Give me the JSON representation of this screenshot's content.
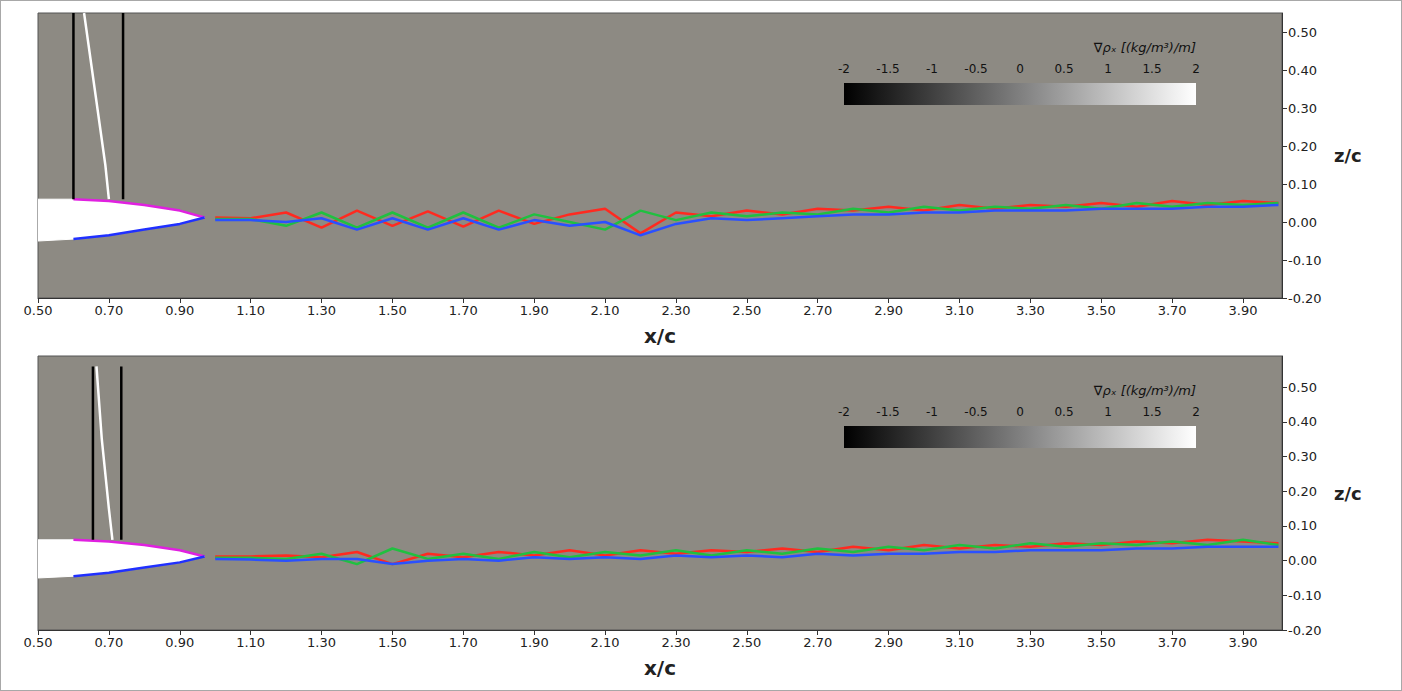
{
  "chart_data": [
    {
      "type": "line",
      "xlabel": "x/c",
      "ylabel": "z/c",
      "xlim": [
        0.5,
        4.01
      ],
      "ylim": [
        -0.2,
        0.55
      ],
      "xticks": [
        {
          "value": 0.5,
          "label": "0.50"
        },
        {
          "value": 0.7,
          "label": "0.70"
        },
        {
          "value": 0.9,
          "label": "0.90"
        },
        {
          "value": 1.1,
          "label": "1.10"
        },
        {
          "value": 1.3,
          "label": "1.30"
        },
        {
          "value": 1.5,
          "label": "1.50"
        },
        {
          "value": 1.7,
          "label": "1.70"
        },
        {
          "value": 1.9,
          "label": "1.90"
        },
        {
          "value": 2.1,
          "label": "2.10"
        },
        {
          "value": 2.3,
          "label": "2.30"
        },
        {
          "value": 2.5,
          "label": "2.50"
        },
        {
          "value": 2.7,
          "label": "2.70"
        },
        {
          "value": 2.9,
          "label": "2.90"
        },
        {
          "value": 3.1,
          "label": "3.10"
        },
        {
          "value": 3.3,
          "label": "3.30"
        },
        {
          "value": 3.5,
          "label": "3.50"
        },
        {
          "value": 3.7,
          "label": "3.70"
        },
        {
          "value": 3.9,
          "label": "3.90"
        }
      ],
      "yticks": [
        {
          "value": -0.2,
          "label": "-0.20"
        },
        {
          "value": -0.1,
          "label": "-0.10"
        },
        {
          "value": 0,
          "label": "0.00"
        },
        {
          "value": 0.1,
          "label": "0.10"
        },
        {
          "value": 0.2,
          "label": "0.20"
        },
        {
          "value": 0.3,
          "label": "0.30"
        },
        {
          "value": 0.4,
          "label": "0.40"
        },
        {
          "value": 0.5,
          "label": "0.50"
        }
      ],
      "grid": false,
      "colorbar": {
        "label": "∇ρₓ [(kg/m³)/m]",
        "range": [
          -2,
          2
        ],
        "ticks": [
          -2,
          -1.5,
          -1,
          -0.5,
          0,
          0.5,
          1,
          1.5,
          2
        ]
      },
      "series": [
        {
          "type": "polygon",
          "color": "#ffffff",
          "x": [
            0.5,
            0.6,
            0.7,
            0.8,
            0.9,
            0.97,
            0.9,
            0.8,
            0.7,
            0.6,
            0.5
          ],
          "values": [
            0.06,
            0.06,
            0.055,
            0.045,
            0.03,
            0.012,
            -0.005,
            -0.02,
            -0.035,
            -0.045,
            -0.05
          ]
        },
        {
          "type": "line",
          "color": "#e020e0",
          "x": [
            0.6,
            0.7,
            0.8,
            0.9,
            0.97
          ],
          "values": [
            0.06,
            0.055,
            0.045,
            0.03,
            0.012
          ]
        },
        {
          "type": "line",
          "color": "#2030ff",
          "x": [
            0.6,
            0.7,
            0.8,
            0.9,
            0.97
          ],
          "values": [
            -0.045,
            -0.035,
            -0.02,
            -0.005,
            0.012
          ]
        },
        {
          "type": "line",
          "color": "#000000",
          "x": [
            0.6,
            0.6
          ],
          "values": [
            0.06,
            0.55
          ]
        },
        {
          "type": "line",
          "color": "#000000",
          "x": [
            0.74,
            0.74
          ],
          "values": [
            0.06,
            0.55
          ]
        },
        {
          "type": "line",
          "color": "#ffffff",
          "x": [
            0.63,
            0.66,
            0.69,
            0.7
          ],
          "values": [
            0.55,
            0.35,
            0.15,
            0.06
          ]
        },
        {
          "type": "line",
          "color": "#ff2a20",
          "x": [
            1.0,
            1.1,
            1.2,
            1.3,
            1.4,
            1.5,
            1.6,
            1.7,
            1.8,
            1.9,
            2.0,
            2.1,
            2.2,
            2.3,
            2.4,
            2.5,
            2.6,
            2.7,
            2.8,
            2.9,
            3.0,
            3.1,
            3.2,
            3.3,
            3.4,
            3.5,
            3.6,
            3.7,
            3.8,
            3.9,
            4.0
          ],
          "values": [
            0.012,
            0.01,
            0.025,
            -0.015,
            0.03,
            -0.01,
            0.028,
            -0.012,
            0.03,
            -0.005,
            0.02,
            0.035,
            -0.03,
            0.025,
            0.015,
            0.03,
            0.02,
            0.035,
            0.03,
            0.04,
            0.03,
            0.045,
            0.035,
            0.045,
            0.04,
            0.05,
            0.04,
            0.055,
            0.045,
            0.055,
            0.05
          ]
        },
        {
          "type": "line",
          "color": "#20c040",
          "x": [
            1.0,
            1.1,
            1.2,
            1.3,
            1.4,
            1.5,
            1.6,
            1.7,
            1.8,
            1.9,
            2.0,
            2.1,
            2.2,
            2.3,
            2.4,
            2.5,
            2.6,
            2.7,
            2.8,
            2.9,
            3.0,
            3.1,
            3.2,
            3.3,
            3.4,
            3.5,
            3.6,
            3.7,
            3.8,
            3.9,
            4.0
          ],
          "values": [
            0.008,
            0.008,
            -0.01,
            0.025,
            -0.015,
            0.025,
            -0.015,
            0.025,
            -0.015,
            0.02,
            0.0,
            -0.02,
            0.03,
            0.005,
            0.025,
            0.015,
            0.025,
            0.02,
            0.035,
            0.025,
            0.04,
            0.03,
            0.04,
            0.035,
            0.045,
            0.035,
            0.05,
            0.04,
            0.05,
            0.045,
            0.05
          ]
        },
        {
          "type": "line",
          "color": "#2a50ff",
          "x": [
            1.0,
            1.1,
            1.2,
            1.3,
            1.4,
            1.5,
            1.6,
            1.7,
            1.8,
            1.9,
            2.0,
            2.1,
            2.2,
            2.3,
            2.4,
            2.5,
            2.6,
            2.7,
            2.8,
            2.9,
            3.0,
            3.1,
            3.2,
            3.3,
            3.4,
            3.5,
            3.6,
            3.7,
            3.8,
            3.9,
            4.0
          ],
          "values": [
            0.005,
            0.005,
            0.0,
            0.01,
            -0.02,
            0.01,
            -0.02,
            0.01,
            -0.02,
            0.005,
            -0.01,
            0.0,
            -0.035,
            -0.005,
            0.01,
            0.005,
            0.01,
            0.015,
            0.02,
            0.02,
            0.025,
            0.025,
            0.03,
            0.03,
            0.03,
            0.035,
            0.035,
            0.035,
            0.04,
            0.04,
            0.045
          ]
        }
      ]
    },
    {
      "type": "line",
      "xlabel": "x/c",
      "ylabel": "z/c",
      "xlim": [
        0.5,
        4.01
      ],
      "ylim": [
        -0.2,
        0.59
      ],
      "xticks": [
        {
          "value": 0.5,
          "label": "0.50"
        },
        {
          "value": 0.7,
          "label": "0.70"
        },
        {
          "value": 0.9,
          "label": "0.90"
        },
        {
          "value": 1.1,
          "label": "1.10"
        },
        {
          "value": 1.3,
          "label": "1.30"
        },
        {
          "value": 1.5,
          "label": "1.50"
        },
        {
          "value": 1.7,
          "label": "1.70"
        },
        {
          "value": 1.9,
          "label": "1.90"
        },
        {
          "value": 2.1,
          "label": "2.10"
        },
        {
          "value": 2.3,
          "label": "2.30"
        },
        {
          "value": 2.5,
          "label": "2.50"
        },
        {
          "value": 2.7,
          "label": "2.70"
        },
        {
          "value": 2.9,
          "label": "2.90"
        },
        {
          "value": 3.1,
          "label": "3.10"
        },
        {
          "value": 3.3,
          "label": "3.30"
        },
        {
          "value": 3.5,
          "label": "3.50"
        },
        {
          "value": 3.7,
          "label": "3.70"
        },
        {
          "value": 3.9,
          "label": "3.90"
        }
      ],
      "yticks": [
        {
          "value": -0.2,
          "label": "-0.20"
        },
        {
          "value": -0.1,
          "label": "-0.10"
        },
        {
          "value": 0,
          "label": "0.00"
        },
        {
          "value": 0.1,
          "label": "0.10"
        },
        {
          "value": 0.2,
          "label": "0.20"
        },
        {
          "value": 0.3,
          "label": "0.30"
        },
        {
          "value": 0.4,
          "label": "0.40"
        },
        {
          "value": 0.5,
          "label": "0.50"
        }
      ],
      "grid": false,
      "colorbar": {
        "label": "∇ρₓ [(kg/m³)/m]",
        "range": [
          -2,
          2
        ],
        "ticks": [
          -2,
          -1.5,
          -1,
          -0.5,
          0,
          0.5,
          1,
          1.5,
          2
        ]
      },
      "series": [
        {
          "type": "polygon",
          "color": "#ffffff",
          "x": [
            0.5,
            0.6,
            0.7,
            0.8,
            0.9,
            0.97,
            0.9,
            0.8,
            0.7,
            0.6,
            0.5
          ],
          "values": [
            0.06,
            0.06,
            0.055,
            0.045,
            0.03,
            0.012,
            -0.005,
            -0.02,
            -0.035,
            -0.045,
            -0.05
          ]
        },
        {
          "type": "line",
          "color": "#e020e0",
          "x": [
            0.6,
            0.7,
            0.8,
            0.9,
            0.97
          ],
          "values": [
            0.06,
            0.055,
            0.045,
            0.03,
            0.012
          ]
        },
        {
          "type": "line",
          "color": "#2030ff",
          "x": [
            0.6,
            0.7,
            0.8,
            0.9,
            0.97
          ],
          "values": [
            -0.045,
            -0.035,
            -0.02,
            -0.005,
            0.012
          ]
        },
        {
          "type": "line",
          "color": "#000000",
          "x": [
            0.655,
            0.655
          ],
          "values": [
            0.06,
            0.56
          ]
        },
        {
          "type": "line",
          "color": "#000000",
          "x": [
            0.735,
            0.735
          ],
          "values": [
            0.06,
            0.56
          ]
        },
        {
          "type": "line",
          "color": "#ffffff",
          "x": [
            0.665,
            0.68,
            0.7,
            0.71
          ],
          "values": [
            0.56,
            0.35,
            0.15,
            0.06
          ]
        },
        {
          "type": "line",
          "color": "#ff2a20",
          "x": [
            1.0,
            1.1,
            1.2,
            1.3,
            1.4,
            1.5,
            1.6,
            1.7,
            1.8,
            1.9,
            2.0,
            2.1,
            2.2,
            2.3,
            2.4,
            2.5,
            2.6,
            2.7,
            2.8,
            2.9,
            3.0,
            3.1,
            3.2,
            3.3,
            3.4,
            3.5,
            3.6,
            3.7,
            3.8,
            3.9,
            4.0
          ],
          "values": [
            0.012,
            0.012,
            0.015,
            0.01,
            0.025,
            -0.01,
            0.02,
            0.01,
            0.025,
            0.015,
            0.03,
            0.015,
            0.03,
            0.02,
            0.03,
            0.025,
            0.035,
            0.025,
            0.04,
            0.03,
            0.045,
            0.035,
            0.045,
            0.04,
            0.05,
            0.045,
            0.055,
            0.05,
            0.06,
            0.055,
            0.05
          ]
        },
        {
          "type": "line",
          "color": "#20c040",
          "x": [
            1.0,
            1.1,
            1.2,
            1.3,
            1.4,
            1.5,
            1.6,
            1.7,
            1.8,
            1.9,
            2.0,
            2.1,
            2.2,
            2.3,
            2.4,
            2.5,
            2.6,
            2.7,
            2.8,
            2.9,
            3.0,
            3.1,
            3.2,
            3.3,
            3.4,
            3.5,
            3.6,
            3.7,
            3.8,
            3.9,
            4.0
          ],
          "values": [
            0.008,
            0.008,
            0.005,
            0.02,
            -0.01,
            0.035,
            0.005,
            0.02,
            0.005,
            0.025,
            0.01,
            0.025,
            0.015,
            0.03,
            0.015,
            0.03,
            0.02,
            0.035,
            0.025,
            0.04,
            0.03,
            0.045,
            0.035,
            0.05,
            0.04,
            0.05,
            0.045,
            0.055,
            0.045,
            0.06,
            0.045
          ]
        },
        {
          "type": "line",
          "color": "#2a50ff",
          "x": [
            1.0,
            1.1,
            1.2,
            1.3,
            1.4,
            1.5,
            1.6,
            1.7,
            1.8,
            1.9,
            2.0,
            2.1,
            2.2,
            2.3,
            2.4,
            2.5,
            2.6,
            2.7,
            2.8,
            2.9,
            3.0,
            3.1,
            3.2,
            3.3,
            3.4,
            3.5,
            3.6,
            3.7,
            3.8,
            3.9,
            4.0
          ],
          "values": [
            0.005,
            0.003,
            0.0,
            0.005,
            0.005,
            -0.01,
            0.0,
            0.005,
            0.0,
            0.01,
            0.005,
            0.01,
            0.005,
            0.015,
            0.01,
            0.015,
            0.01,
            0.02,
            0.015,
            0.02,
            0.02,
            0.025,
            0.025,
            0.03,
            0.03,
            0.03,
            0.035,
            0.035,
            0.04,
            0.04,
            0.04
          ]
        }
      ]
    }
  ]
}
